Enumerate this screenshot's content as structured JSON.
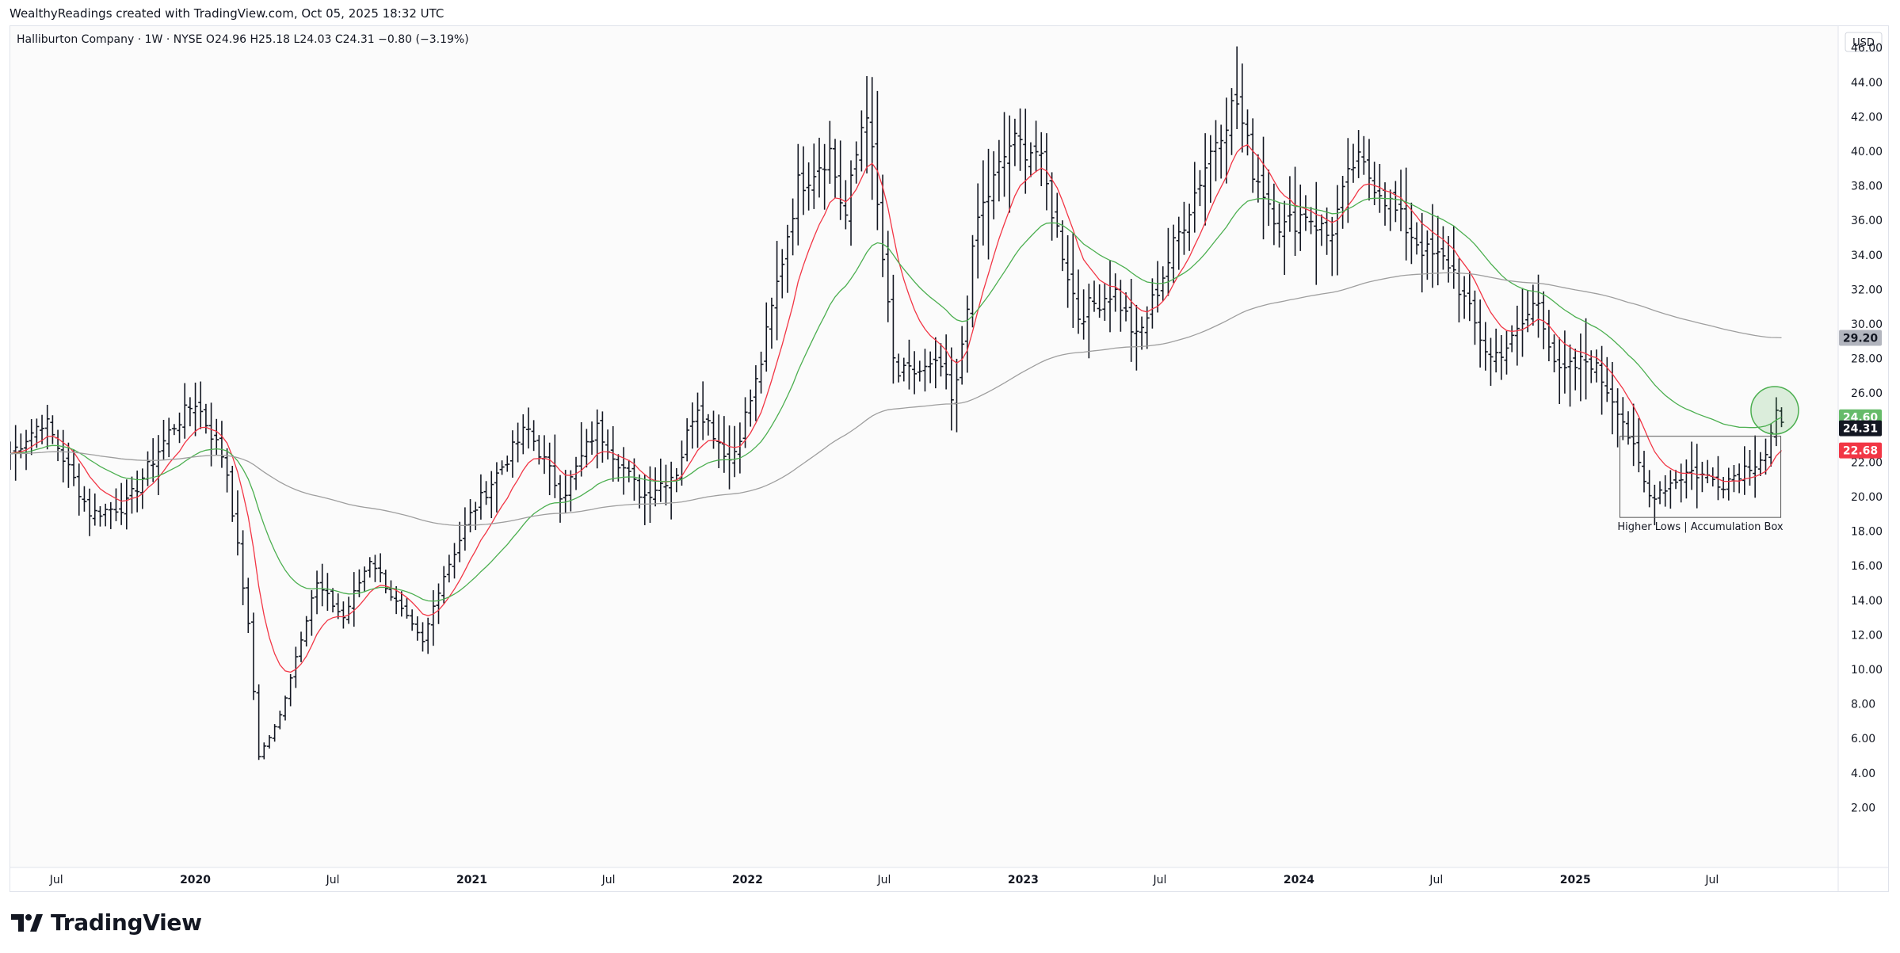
{
  "header": {
    "credit": "WealthyReadings created with TradingView.com, Oct 05, 2025 18:32 UTC",
    "legend": "Halliburton Company · 1W · NYSE  O24.96  H25.18  L24.03  C24.31  −0.80 (−3.19%)",
    "currency": "USD"
  },
  "brand": {
    "name": "TradingView"
  },
  "colors": {
    "bar": "#131722",
    "ma_fast": "#f23645",
    "ma_mid": "#4caf50",
    "ma_slow": "#9e9e9e",
    "box": "#555555",
    "circle_fill": "#4caf50"
  },
  "chart_data": {
    "type": "ohlc",
    "interval": "1W",
    "symbol": "Halliburton Company",
    "exchange": "NYSE",
    "y_range": [
      0,
      48
    ],
    "y_ticks": [
      2,
      4,
      6,
      8,
      10,
      12,
      14,
      16,
      18,
      20,
      22,
      24,
      26,
      28,
      30,
      32,
      34,
      36,
      38,
      40,
      42,
      44,
      46
    ],
    "x_labels": [
      {
        "label": "Jul",
        "t": "2019-07-01"
      },
      {
        "label": "2020",
        "t": "2020-01-01"
      },
      {
        "label": "Jul",
        "t": "2020-07-01"
      },
      {
        "label": "2021",
        "t": "2021-01-01"
      },
      {
        "label": "Jul",
        "t": "2021-07-01"
      },
      {
        "label": "2022",
        "t": "2022-01-01"
      },
      {
        "label": "Jul",
        "t": "2022-07-01"
      },
      {
        "label": "2023",
        "t": "2023-01-01"
      },
      {
        "label": "Jul",
        "t": "2023-07-01"
      },
      {
        "label": "2024",
        "t": "2024-01-01"
      },
      {
        "label": "Jul",
        "t": "2024-07-01"
      },
      {
        "label": "2025",
        "t": "2025-01-01"
      },
      {
        "label": "Jul",
        "t": "2025-07-01"
      }
    ],
    "x_range": [
      "2019-05-01",
      "2025-12-15"
    ],
    "anchors": [
      [
        "2019-05-01",
        22.5
      ],
      [
        "2019-06-15",
        24.5
      ],
      [
        "2019-08-15",
        19.0
      ],
      [
        "2019-10-01",
        19.5
      ],
      [
        "2019-12-01",
        24.0
      ],
      [
        "2020-01-01",
        25.5
      ],
      [
        "2020-02-10",
        22.0
      ],
      [
        "2020-03-10",
        13.0
      ],
      [
        "2020-03-25",
        5.0
      ],
      [
        "2020-04-20",
        7.0
      ],
      [
        "2020-06-08",
        15.0
      ],
      [
        "2020-07-15",
        13.0
      ],
      [
        "2020-08-20",
        16.5
      ],
      [
        "2020-09-20",
        14.0
      ],
      [
        "2020-10-28",
        11.5
      ],
      [
        "2020-11-20",
        15.0
      ],
      [
        "2020-12-31",
        19.0
      ],
      [
        "2021-03-15",
        24.0
      ],
      [
        "2021-05-01",
        20.0
      ],
      [
        "2021-06-15",
        24.0
      ],
      [
        "2021-08-15",
        20.0
      ],
      [
        "2021-09-30",
        21.5
      ],
      [
        "2021-10-25",
        25.5
      ],
      [
        "2021-12-10",
        22.0
      ],
      [
        "2022-01-15",
        27.0
      ],
      [
        "2022-03-08",
        38.0
      ],
      [
        "2022-04-20",
        40.0
      ],
      [
        "2022-05-10",
        36.0
      ],
      [
        "2022-06-07",
        43.0
      ],
      [
        "2022-07-15",
        27.0
      ],
      [
        "2022-09-15",
        27.5
      ],
      [
        "2022-10-01",
        25.0
      ],
      [
        "2022-11-01",
        36.0
      ],
      [
        "2022-12-15",
        40.5
      ],
      [
        "2023-01-20",
        40.0
      ],
      [
        "2023-03-15",
        30.5
      ],
      [
        "2023-05-01",
        32.0
      ],
      [
        "2023-06-01",
        29.0
      ],
      [
        "2023-07-15",
        34.0
      ],
      [
        "2023-09-15",
        41.0
      ],
      [
        "2023-10-10",
        43.0
      ],
      [
        "2023-11-01",
        39.0
      ],
      [
        "2023-12-10",
        35.5
      ],
      [
        "2024-01-10",
        36.5
      ],
      [
        "2024-02-10",
        35.0
      ],
      [
        "2024-03-15",
        39.5
      ],
      [
        "2024-04-15",
        38.0
      ],
      [
        "2024-05-15",
        36.0
      ],
      [
        "2024-06-20",
        34.0
      ],
      [
        "2024-07-20",
        33.5
      ],
      [
        "2024-08-10",
        31.0
      ],
      [
        "2024-09-10",
        28.0
      ],
      [
        "2024-10-10",
        29.0
      ],
      [
        "2024-11-12",
        31.5
      ],
      [
        "2024-12-10",
        27.0
      ],
      [
        "2025-01-20",
        28.0
      ],
      [
        "2025-03-01",
        25.0
      ],
      [
        "2025-04-08",
        20.0
      ],
      [
        "2025-06-01",
        21.5
      ],
      [
        "2025-07-15",
        20.8
      ],
      [
        "2025-09-10",
        22.5
      ],
      [
        "2025-09-25",
        24.7
      ],
      [
        "2025-10-03",
        24.31
      ]
    ],
    "last_bar": {
      "open": 24.96,
      "high": 25.18,
      "low": 24.03,
      "close": 24.31,
      "change": -0.8,
      "change_pct": -3.19
    },
    "series": [
      {
        "type": "line",
        "kind": "moving-average-fast",
        "color": "#f23645",
        "last": 22.68
      },
      {
        "type": "line",
        "kind": "moving-average-mid",
        "color": "#4caf50",
        "last": 24.6
      },
      {
        "type": "line",
        "kind": "moving-average-slow",
        "color": "#9e9e9e",
        "last": 29.2
      }
    ],
    "price_labels": {
      "ma_slow": "29.20",
      "ma_mid": "24.60",
      "last": "24.31",
      "ma_fast": "22.68"
    },
    "annotations": {
      "box_text": "Higher Lows | Accumulation Box",
      "box": {
        "t0": "2025-03-01",
        "t1": "2025-09-30",
        "y_low": 18.8,
        "y_high": 23.5
      },
      "circle": {
        "t": "2025-09-22",
        "price": 25.0
      }
    }
  }
}
